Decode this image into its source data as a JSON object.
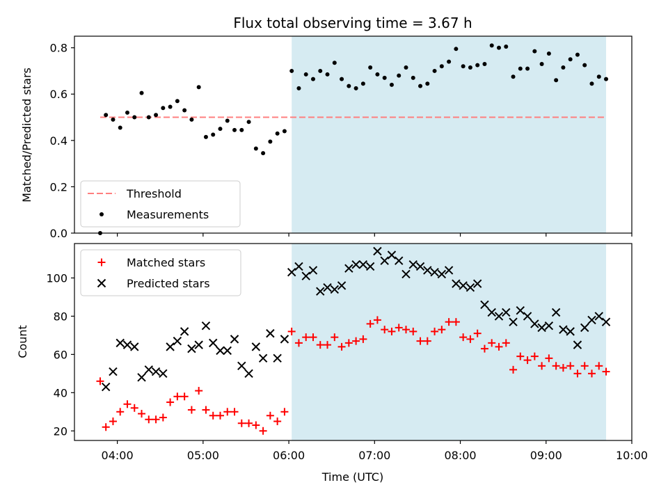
{
  "chart_data": [
    {
      "type": "scatter",
      "title": "Flux total observing time = 3.67 h",
      "ylabel": "Matched/Predicted stars",
      "xlabel": "",
      "x_type": "time",
      "xlim": [
        "03:30",
        "10:00"
      ],
      "ylim": [
        0,
        0.85
      ],
      "xticks": [
        "04:00",
        "05:00",
        "06:00",
        "07:00",
        "08:00",
        "09:00",
        "10:00"
      ],
      "yticks": [
        0.0,
        0.2,
        0.4,
        0.6,
        0.8
      ],
      "ytick_labels": [
        "0.0",
        "0.2",
        "0.4",
        "0.6",
        "0.8"
      ],
      "shaded_region": {
        "x": [
          "06:02",
          "09:42"
        ],
        "color": "#add8e6",
        "alpha": 0.5
      },
      "threshold": {
        "name": "Threshold",
        "y": 0.5,
        "x": [
          "03:48",
          "09:42"
        ],
        "color": "#ff7f7f",
        "style": "dashed"
      },
      "series": [
        {
          "name": "Measurements",
          "marker": "dot",
          "color": "#000000",
          "points": [
            [
              "03:48",
              0.0
            ],
            [
              "03:52",
              0.51
            ],
            [
              "03:57",
              0.49
            ],
            [
              "04:02",
              0.455
            ],
            [
              "04:07",
              0.52
            ],
            [
              "04:12",
              0.5
            ],
            [
              "04:17",
              0.605
            ],
            [
              "04:22",
              0.5
            ],
            [
              "04:27",
              0.51
            ],
            [
              "04:32",
              0.54
            ],
            [
              "04:37",
              0.545
            ],
            [
              "04:42",
              0.57
            ],
            [
              "04:47",
              0.53
            ],
            [
              "04:52",
              0.49
            ],
            [
              "04:57",
              0.63
            ],
            [
              "05:02",
              0.415
            ],
            [
              "05:07",
              0.425
            ],
            [
              "05:12",
              0.45
            ],
            [
              "05:17",
              0.485
            ],
            [
              "05:22",
              0.445
            ],
            [
              "05:27",
              0.445
            ],
            [
              "05:32",
              0.48
            ],
            [
              "05:37",
              0.365
            ],
            [
              "05:42",
              0.345
            ],
            [
              "05:47",
              0.395
            ],
            [
              "05:52",
              0.43
            ],
            [
              "05:57",
              0.44
            ],
            [
              "06:02",
              0.7
            ],
            [
              "06:07",
              0.625
            ],
            [
              "06:12",
              0.685
            ],
            [
              "06:17",
              0.665
            ],
            [
              "06:22",
              0.7
            ],
            [
              "06:27",
              0.685
            ],
            [
              "06:32",
              0.735
            ],
            [
              "06:37",
              0.665
            ],
            [
              "06:42",
              0.635
            ],
            [
              "06:47",
              0.625
            ],
            [
              "06:52",
              0.645
            ],
            [
              "06:57",
              0.715
            ],
            [
              "07:02",
              0.685
            ],
            [
              "07:07",
              0.67
            ],
            [
              "07:12",
              0.64
            ],
            [
              "07:17",
              0.68
            ],
            [
              "07:22",
              0.715
            ],
            [
              "07:27",
              0.67
            ],
            [
              "07:32",
              0.635
            ],
            [
              "07:37",
              0.645
            ],
            [
              "07:42",
              0.7
            ],
            [
              "07:47",
              0.72
            ],
            [
              "07:52",
              0.74
            ],
            [
              "07:57",
              0.795
            ],
            [
              "08:02",
              0.72
            ],
            [
              "08:07",
              0.715
            ],
            [
              "08:12",
              0.725
            ],
            [
              "08:17",
              0.73
            ],
            [
              "08:22",
              0.81
            ],
            [
              "08:27",
              0.8
            ],
            [
              "08:32",
              0.805
            ],
            [
              "08:37",
              0.675
            ],
            [
              "08:42",
              0.71
            ],
            [
              "08:47",
              0.71
            ],
            [
              "08:52",
              0.785
            ],
            [
              "08:57",
              0.73
            ],
            [
              "09:02",
              0.775
            ],
            [
              "09:07",
              0.66
            ],
            [
              "09:12",
              0.715
            ],
            [
              "09:17",
              0.75
            ],
            [
              "09:22",
              0.77
            ],
            [
              "09:27",
              0.725
            ],
            [
              "09:32",
              0.645
            ],
            [
              "09:37",
              0.675
            ],
            [
              "09:42",
              0.665
            ]
          ]
        }
      ],
      "legend": {
        "placement": "lower-left",
        "entries": [
          "Threshold",
          "Measurements"
        ]
      }
    },
    {
      "type": "scatter",
      "title": "",
      "ylabel": "Count",
      "xlabel": "Time (UTC)",
      "x_type": "time",
      "xlim": [
        "03:30",
        "10:00"
      ],
      "ylim": [
        15,
        118
      ],
      "xticks": [
        "04:00",
        "05:00",
        "06:00",
        "07:00",
        "08:00",
        "09:00",
        "10:00"
      ],
      "yticks": [
        20,
        40,
        60,
        80,
        100
      ],
      "ytick_labels": [
        "20",
        "40",
        "60",
        "80",
        "100"
      ],
      "shaded_region": {
        "x": [
          "06:02",
          "09:42"
        ],
        "color": "#add8e6",
        "alpha": 0.5
      },
      "series": [
        {
          "name": "Matched stars",
          "marker": "plus",
          "color": "#ff0000",
          "points": [
            [
              "03:48",
              46
            ],
            [
              "03:52",
              22
            ],
            [
              "03:57",
              25
            ],
            [
              "04:02",
              30
            ],
            [
              "04:07",
              34
            ],
            [
              "04:12",
              32
            ],
            [
              "04:17",
              29
            ],
            [
              "04:22",
              26
            ],
            [
              "04:27",
              26
            ],
            [
              "04:32",
              27
            ],
            [
              "04:37",
              35
            ],
            [
              "04:42",
              38
            ],
            [
              "04:47",
              38
            ],
            [
              "04:52",
              31
            ],
            [
              "04:57",
              41
            ],
            [
              "05:02",
              31
            ],
            [
              "05:07",
              28
            ],
            [
              "05:12",
              28
            ],
            [
              "05:17",
              30
            ],
            [
              "05:22",
              30
            ],
            [
              "05:27",
              24
            ],
            [
              "05:32",
              24
            ],
            [
              "05:37",
              23
            ],
            [
              "05:42",
              20
            ],
            [
              "05:47",
              28
            ],
            [
              "05:52",
              25
            ],
            [
              "05:57",
              30
            ],
            [
              "06:02",
              72
            ],
            [
              "06:07",
              66
            ],
            [
              "06:12",
              69
            ],
            [
              "06:17",
              69
            ],
            [
              "06:22",
              65
            ],
            [
              "06:27",
              65
            ],
            [
              "06:32",
              69
            ],
            [
              "06:37",
              64
            ],
            [
              "06:42",
              66
            ],
            [
              "06:47",
              67
            ],
            [
              "06:52",
              68
            ],
            [
              "06:57",
              76
            ],
            [
              "07:02",
              78
            ],
            [
              "07:07",
              73
            ],
            [
              "07:12",
              72
            ],
            [
              "07:17",
              74
            ],
            [
              "07:22",
              73
            ],
            [
              "07:27",
              72
            ],
            [
              "07:32",
              67
            ],
            [
              "07:37",
              67
            ],
            [
              "07:42",
              72
            ],
            [
              "07:47",
              73
            ],
            [
              "07:52",
              77
            ],
            [
              "07:57",
              77
            ],
            [
              "08:02",
              69
            ],
            [
              "08:07",
              68
            ],
            [
              "08:12",
              71
            ],
            [
              "08:17",
              63
            ],
            [
              "08:22",
              66
            ],
            [
              "08:27",
              64
            ],
            [
              "08:32",
              66
            ],
            [
              "08:37",
              52
            ],
            [
              "08:42",
              59
            ],
            [
              "08:47",
              57
            ],
            [
              "08:52",
              59
            ],
            [
              "08:57",
              54
            ],
            [
              "09:02",
              58
            ],
            [
              "09:07",
              54
            ],
            [
              "09:12",
              53
            ],
            [
              "09:17",
              54
            ],
            [
              "09:22",
              50
            ],
            [
              "09:27",
              54
            ],
            [
              "09:32",
              50
            ],
            [
              "09:37",
              54
            ],
            [
              "09:42",
              51
            ]
          ]
        },
        {
          "name": "Predicted stars",
          "marker": "x",
          "color": "#000000",
          "points": [
            [
              "03:52",
              43
            ],
            [
              "03:57",
              51
            ],
            [
              "04:02",
              66
            ],
            [
              "04:07",
              65
            ],
            [
              "04:12",
              64
            ],
            [
              "04:17",
              48
            ],
            [
              "04:22",
              52
            ],
            [
              "04:27",
              51
            ],
            [
              "04:32",
              50
            ],
            [
              "04:37",
              64
            ],
            [
              "04:42",
              67
            ],
            [
              "04:47",
              72
            ],
            [
              "04:52",
              63
            ],
            [
              "04:57",
              65
            ],
            [
              "05:02",
              75
            ],
            [
              "05:07",
              66
            ],
            [
              "05:12",
              62
            ],
            [
              "05:17",
              62
            ],
            [
              "05:22",
              68
            ],
            [
              "05:27",
              54
            ],
            [
              "05:32",
              50
            ],
            [
              "05:37",
              64
            ],
            [
              "05:42",
              58
            ],
            [
              "05:47",
              71
            ],
            [
              "05:52",
              58
            ],
            [
              "05:57",
              68
            ],
            [
              "06:02",
              103
            ],
            [
              "06:07",
              106
            ],
            [
              "06:12",
              101
            ],
            [
              "06:17",
              104
            ],
            [
              "06:22",
              93
            ],
            [
              "06:27",
              95
            ],
            [
              "06:32",
              94
            ],
            [
              "06:37",
              96
            ],
            [
              "06:42",
              105
            ],
            [
              "06:47",
              107
            ],
            [
              "06:52",
              107
            ],
            [
              "06:57",
              106
            ],
            [
              "07:02",
              114
            ],
            [
              "07:07",
              109
            ],
            [
              "07:12",
              112
            ],
            [
              "07:17",
              109
            ],
            [
              "07:22",
              102
            ],
            [
              "07:27",
              107
            ],
            [
              "07:32",
              106
            ],
            [
              "07:37",
              104
            ],
            [
              "07:42",
              103
            ],
            [
              "07:47",
              102
            ],
            [
              "07:52",
              104
            ],
            [
              "07:57",
              97
            ],
            [
              "08:02",
              96
            ],
            [
              "08:07",
              95
            ],
            [
              "08:12",
              97
            ],
            [
              "08:17",
              86
            ],
            [
              "08:22",
              82
            ],
            [
              "08:27",
              80
            ],
            [
              "08:32",
              82
            ],
            [
              "08:37",
              77
            ],
            [
              "08:42",
              83
            ],
            [
              "08:47",
              80
            ],
            [
              "08:52",
              76
            ],
            [
              "08:57",
              74
            ],
            [
              "09:02",
              75
            ],
            [
              "09:07",
              82
            ],
            [
              "09:12",
              73
            ],
            [
              "09:17",
              72
            ],
            [
              "09:22",
              65
            ],
            [
              "09:27",
              74
            ],
            [
              "09:32",
              78
            ],
            [
              "09:37",
              80
            ],
            [
              "09:42",
              77
            ]
          ]
        }
      ],
      "legend": {
        "placement": "upper-left",
        "entries": [
          "Matched stars",
          "Predicted stars"
        ]
      }
    }
  ]
}
